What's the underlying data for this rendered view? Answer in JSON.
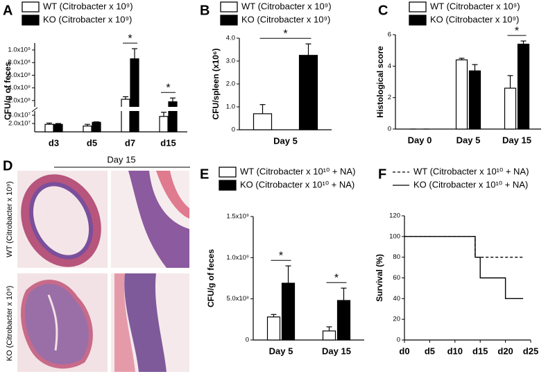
{
  "chart_data": [
    {
      "type": "bar",
      "panel_label": "A",
      "ylabel": "CFU/g of feces",
      "categories": [
        "d3",
        "d5",
        "d7",
        "d15"
      ],
      "series": [
        {
          "name": "WT (Citrobacter x 10⁹)",
          "color": "#ffffff",
          "values": [
            18000000,
            14000000,
            220000000,
            37000000
          ],
          "errors": [
            3000000,
            4000000,
            40000000,
            10000000
          ]
        },
        {
          "name": "KO (Citrobacter x 10⁹)",
          "color": "#000000",
          "values": [
            18000000,
            23000000,
            860000000,
            180000000
          ],
          "errors": [
            2000000,
            1000000,
            160000000,
            60000000
          ]
        }
      ],
      "ylim": [
        0,
        1000000000
      ],
      "axis_break": [
        50000000,
        100000000
      ],
      "yticks": [
        {
          "value": 20000000,
          "label": "2.0x10⁷"
        },
        {
          "value": 40000000,
          "label": "4.0x10⁷"
        },
        {
          "value": 200000000,
          "label": "2.0x10⁸"
        },
        {
          "value": 400000000,
          "label": "4.0x10⁸"
        },
        {
          "value": 600000000,
          "label": "6.0x10⁸"
        },
        {
          "value": 800000000,
          "label": "8.0x10⁸"
        },
        {
          "value": 1000000000,
          "label": "1.0x10⁹"
        }
      ],
      "annotations": [
        {
          "text": "*",
          "category": "d7"
        },
        {
          "text": "*",
          "category": "d15"
        }
      ]
    },
    {
      "type": "bar",
      "panel_label": "B",
      "ylabel": "CFU/spleen (x10⁶)",
      "categories": [
        "Day 5"
      ],
      "series": [
        {
          "name": "WT (Citrobacter x 10⁹)",
          "color": "#ffffff",
          "values": [
            0.7
          ],
          "errors": [
            0.4
          ]
        },
        {
          "name": "KO (Citrobacter x 10⁹)",
          "color": "#000000",
          "values": [
            3.25
          ],
          "errors": [
            0.5
          ]
        }
      ],
      "ylim": [
        0,
        4
      ],
      "yticks": [
        0,
        {
          "value": 1,
          "label": "1.0"
        },
        {
          "value": 2,
          "label": "2.0"
        },
        {
          "value": 3,
          "label": "3.0"
        },
        {
          "value": 4,
          "label": "4.0"
        }
      ],
      "annotations": [
        {
          "text": "*",
          "category": "Day 5"
        }
      ]
    },
    {
      "type": "bar",
      "panel_label": "C",
      "ylabel": "Histological score",
      "categories": [
        "Day 0",
        "Day 5",
        "Day 15"
      ],
      "series": [
        {
          "name": "WT (Citrobacter x 10⁹)",
          "color": "#ffffff",
          "values": [
            0,
            4.4,
            2.6
          ],
          "errors": [
            0,
            0.1,
            0.8
          ]
        },
        {
          "name": "KO (Citrobacter x 10⁹)",
          "color": "#000000",
          "values": [
            0,
            3.7,
            5.4
          ],
          "errors": [
            0,
            0.4,
            0.2
          ]
        }
      ],
      "ylim": [
        0,
        6
      ],
      "yticks": [
        0,
        2,
        4,
        6
      ],
      "annotations": [
        {
          "text": "*",
          "category": "Day 15"
        }
      ]
    },
    {
      "type": "bar",
      "panel_label": "E",
      "ylabel": "CFU/g of feces",
      "categories": [
        "Day 5",
        "Day 15"
      ],
      "series": [
        {
          "name": "WT (Citrobacter x 10¹⁰ + NA)",
          "color": "#ffffff",
          "values": [
            280000000,
            110000000
          ],
          "errors": [
            30000000,
            50000000
          ]
        },
        {
          "name": "KO (Citrobacter x 10¹⁰ + NA)",
          "color": "#000000",
          "values": [
            690000000,
            480000000
          ],
          "errors": [
            210000000,
            150000000
          ]
        }
      ],
      "ylim": [
        0,
        1500000000
      ],
      "yticks": [
        0,
        {
          "value": 500000000,
          "label": "5.0x10⁸"
        },
        {
          "value": 1000000000,
          "label": "1.0x10⁹"
        },
        {
          "value": 1500000000,
          "label": "1.5x10⁹"
        }
      ],
      "annotations": [
        {
          "text": "*",
          "category": "Day 5"
        },
        {
          "text": "*",
          "category": "Day 15"
        }
      ]
    },
    {
      "type": "line",
      "panel_label": "F",
      "ylabel": "Survival (%)",
      "series": [
        {
          "name": "WT (Citrobacter x 10¹⁰ + NA)",
          "color": "#000000",
          "line_style": "dashed",
          "x": [
            0,
            14,
            14,
            23.5
          ],
          "values": [
            100,
            100,
            80,
            80
          ]
        },
        {
          "name": "KO (Citrobacter x 10¹⁰ + NA)",
          "color": "#000000",
          "line_style": "solid",
          "x": [
            0,
            14,
            14,
            15,
            15,
            20,
            20,
            23.5
          ],
          "values": [
            100,
            100,
            80,
            80,
            60,
            60,
            40,
            40
          ]
        }
      ],
      "xlim": [
        0,
        25
      ],
      "xticks": [
        {
          "value": 0,
          "label": "d0"
        },
        {
          "value": 5,
          "label": "d5"
        },
        {
          "value": 10,
          "label": "d10"
        },
        {
          "value": 15,
          "label": "d15"
        },
        {
          "value": 20,
          "label": "d20"
        },
        {
          "value": 25,
          "label": "d25"
        }
      ],
      "ylim": [
        0,
        120
      ],
      "yticks": [
        0,
        20,
        40,
        60,
        80,
        100,
        120
      ]
    }
  ],
  "image_panel": {
    "panel_label": "D",
    "title": "Day 15",
    "row_labels": [
      "WT (Citrobacter x 10⁹)",
      "KO (Citrobacter x 10⁹)"
    ]
  }
}
